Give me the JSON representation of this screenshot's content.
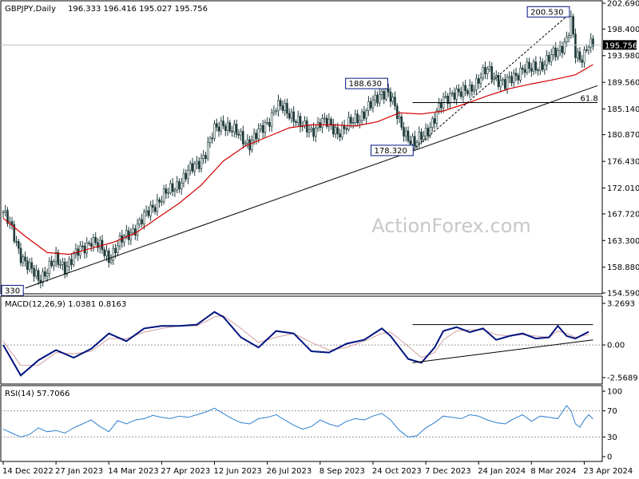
{
  "header": {
    "symbol": "GBPJPY,Daily",
    "ohlc": "196.333 196.416 195.027 195.756"
  },
  "watermark": "ActionForex.com",
  "colors": {
    "candle": "#1f3a3a",
    "ma": "#d40000",
    "macd": "#00137f",
    "signal": "#d0a0a0",
    "rsi": "#2e7fd0",
    "bg": "#ffffff",
    "current_price_bg": "#000000"
  },
  "chart_data": [
    {
      "type": "candlestick",
      "title": "GBPJPY,Daily",
      "ylim": [
        154.59,
        202.69
      ],
      "y_ticks": [
        "202.690",
        "198.400",
        "193.980",
        "189.560",
        "185.140",
        "180.870",
        "176.430",
        "172.010",
        "167.720",
        "163.300",
        "158.880",
        "154.590"
      ],
      "x_ticks": [
        "14 Dec 2022",
        "27 Jan 2023",
        "14 Mar 2023",
        "27 Apr 2023",
        "12 Jun 2023",
        "26 Jul 2023",
        "8 Sep 2023",
        "24 Oct 2023",
        "7 Dec 2023",
        "24 Jan 2024",
        "8 Mar 2024",
        "23 Apr 2024"
      ],
      "close_path": [
        [
          0,
          168.0
        ],
        [
          4,
          165.0
        ],
        [
          8,
          161.0
        ],
        [
          12,
          158.5
        ],
        [
          16,
          157.0
        ],
        [
          20,
          158.5
        ],
        [
          24,
          160.0
        ],
        [
          28,
          159.0
        ],
        [
          32,
          160.5
        ],
        [
          36,
          162.0
        ],
        [
          40,
          163.5
        ],
        [
          44,
          162.0
        ],
        [
          48,
          160.5
        ],
        [
          52,
          162.5
        ],
        [
          56,
          164.0
        ],
        [
          60,
          165.5
        ],
        [
          64,
          167.0
        ],
        [
          68,
          169.0
        ],
        [
          72,
          170.5
        ],
        [
          76,
          171.5
        ],
        [
          80,
          173.0
        ],
        [
          84,
          174.5
        ],
        [
          88,
          176.0
        ],
        [
          92,
          178.0
        ],
        [
          96,
          181.5
        ],
        [
          100,
          183.0
        ],
        [
          104,
          181.5
        ],
        [
          108,
          180.5
        ],
        [
          112,
          179.5
        ],
        [
          116,
          181.0
        ],
        [
          120,
          183.0
        ],
        [
          124,
          185.5
        ],
        [
          128,
          185.0
        ],
        [
          132,
          184.0
        ],
        [
          136,
          182.0
        ],
        [
          140,
          181.5
        ],
        [
          144,
          183.0
        ],
        [
          148,
          182.5
        ],
        [
          152,
          181.5
        ],
        [
          156,
          182.0
        ],
        [
          160,
          183.5
        ],
        [
          164,
          184.5
        ],
        [
          168,
          186.0
        ],
        [
          172,
          188.0
        ],
        [
          174,
          188.3
        ],
        [
          176,
          187.0
        ],
        [
          180,
          183.0
        ],
        [
          184,
          180.5
        ],
        [
          187,
          179.0
        ],
        [
          190,
          180.5
        ],
        [
          192,
          181.5
        ],
        [
          196,
          183.5
        ],
        [
          200,
          186.5
        ],
        [
          204,
          188.0
        ],
        [
          208,
          187.5
        ],
        [
          212,
          188.5
        ],
        [
          216,
          190.0
        ],
        [
          220,
          191.5
        ],
        [
          224,
          190.5
        ],
        [
          228,
          189.0
        ],
        [
          232,
          190.5
        ],
        [
          236,
          192.0
        ],
        [
          240,
          191.5
        ],
        [
          244,
          192.5
        ],
        [
          248,
          193.5
        ],
        [
          252,
          194.5
        ],
        [
          256,
          197.0
        ],
        [
          258,
          199.8
        ],
        [
          260,
          194.0
        ],
        [
          262,
          193.0
        ],
        [
          264,
          194.5
        ],
        [
          266,
          196.5
        ],
        [
          268,
          195.8
        ]
      ],
      "ma_path": [
        [
          0,
          167.0
        ],
        [
          10,
          164.0
        ],
        [
          20,
          161.3
        ],
        [
          30,
          161.0
        ],
        [
          40,
          162.0
        ],
        [
          50,
          163.0
        ],
        [
          60,
          164.5
        ],
        [
          70,
          167.0
        ],
        [
          80,
          169.5
        ],
        [
          90,
          172.5
        ],
        [
          100,
          176.5
        ],
        [
          110,
          179.0
        ],
        [
          120,
          180.5
        ],
        [
          130,
          182.0
        ],
        [
          140,
          182.5
        ],
        [
          150,
          182.5
        ],
        [
          160,
          182.3
        ],
        [
          170,
          183.0
        ],
        [
          180,
          184.5
        ],
        [
          190,
          184.3
        ],
        [
          200,
          184.8
        ],
        [
          210,
          186.0
        ],
        [
          220,
          187.3
        ],
        [
          230,
          188.5
        ],
        [
          240,
          189.3
        ],
        [
          250,
          190.0
        ],
        [
          260,
          190.8
        ],
        [
          268,
          192.5
        ]
      ],
      "annotations": [
        {
          "label": "200.530",
          "at": [
            258,
            200.53
          ]
        },
        {
          "label": "188.630",
          "at": [
            174,
            188.63
          ]
        },
        {
          "label": "178.320",
          "at": [
            187,
            178.32
          ]
        },
        {
          "label": "330",
          "at": [
            4,
            155.33
          ]
        },
        {
          "label": "61.8",
          "at": [
            268,
            186.2
          ]
        }
      ],
      "trendlines": [
        {
          "from": [
            10,
            155.4
          ],
          "to": [
            270,
            189.0
          ]
        },
        {
          "from": [
            186,
            178.3
          ],
          "to": [
            256,
            200.5
          ],
          "dashed": true
        },
        {
          "from": [
            186,
            186.2
          ],
          "to": [
            270,
            186.2
          ]
        },
        {
          "horizontal_price": 195.756
        }
      ],
      "current_price": "195.756"
    },
    {
      "type": "line",
      "title": "MACD(12,26,9) 1.0381 0.8163",
      "ylim": [
        -2.5689,
        3.2693
      ],
      "y_ticks": [
        "3.2693",
        "0.00",
        "-2.5689"
      ],
      "series": [
        {
          "name": "MACD",
          "values": [
            [
              0,
              0.0
            ],
            [
              8,
              -2.4
            ],
            [
              16,
              -1.2
            ],
            [
              24,
              -0.4
            ],
            [
              32,
              -1.0
            ],
            [
              40,
              -0.3
            ],
            [
              48,
              0.9
            ],
            [
              56,
              0.3
            ],
            [
              64,
              1.3
            ],
            [
              72,
              1.5
            ],
            [
              80,
              1.5
            ],
            [
              88,
              1.6
            ],
            [
              96,
              2.6
            ],
            [
              100,
              2.2
            ],
            [
              108,
              0.6
            ],
            [
              116,
              -0.2
            ],
            [
              124,
              1.1
            ],
            [
              132,
              0.9
            ],
            [
              140,
              -0.5
            ],
            [
              148,
              -0.6
            ],
            [
              156,
              0.1
            ],
            [
              164,
              0.4
            ],
            [
              172,
              1.3
            ],
            [
              176,
              0.7
            ],
            [
              184,
              -1.1
            ],
            [
              190,
              -1.4
            ],
            [
              196,
              -0.2
            ],
            [
              200,
              1.1
            ],
            [
              206,
              1.4
            ],
            [
              212,
              1.0
            ],
            [
              218,
              1.3
            ],
            [
              224,
              0.4
            ],
            [
              230,
              0.7
            ],
            [
              236,
              0.9
            ],
            [
              242,
              0.5
            ],
            [
              248,
              0.6
            ],
            [
              252,
              1.5
            ],
            [
              256,
              0.7
            ],
            [
              260,
              0.5
            ],
            [
              266,
              1.04
            ]
          ]
        },
        {
          "name": "Signal",
          "values": [
            [
              0,
              0.3
            ],
            [
              8,
              -1.6
            ],
            [
              16,
              -1.6
            ],
            [
              24,
              -0.6
            ],
            [
              32,
              -0.7
            ],
            [
              40,
              -0.5
            ],
            [
              48,
              0.5
            ],
            [
              56,
              0.5
            ],
            [
              64,
              1.0
            ],
            [
              72,
              1.3
            ],
            [
              80,
              1.5
            ],
            [
              88,
              1.5
            ],
            [
              96,
              2.2
            ],
            [
              100,
              2.3
            ],
            [
              108,
              1.3
            ],
            [
              116,
              0.2
            ],
            [
              124,
              0.6
            ],
            [
              132,
              0.9
            ],
            [
              140,
              0.2
            ],
            [
              148,
              -0.4
            ],
            [
              156,
              -0.2
            ],
            [
              164,
              0.3
            ],
            [
              172,
              0.9
            ],
            [
              176,
              1.0
            ],
            [
              184,
              -0.1
            ],
            [
              190,
              -1.0
            ],
            [
              196,
              -0.6
            ],
            [
              200,
              0.4
            ],
            [
              206,
              1.1
            ],
            [
              212,
              1.2
            ],
            [
              218,
              1.2
            ],
            [
              224,
              0.8
            ],
            [
              230,
              0.7
            ],
            [
              236,
              0.8
            ],
            [
              242,
              0.7
            ],
            [
              248,
              0.6
            ],
            [
              252,
              1.1
            ],
            [
              256,
              0.9
            ],
            [
              260,
              0.6
            ],
            [
              266,
              0.82
            ]
          ]
        }
      ],
      "trendlines": [
        {
          "from": [
            186,
            -1.4
          ],
          "to": [
            268,
            0.4
          ]
        },
        {
          "from": [
            186,
            1.6
          ],
          "to": [
            268,
            1.6
          ]
        }
      ]
    },
    {
      "type": "line",
      "title": "RSI(14) 57.7066",
      "ylim": [
        0,
        100
      ],
      "y_ticks": [
        "100",
        "70",
        "30",
        "0"
      ],
      "series": [
        {
          "name": "RSI",
          "values": [
            [
              0,
              42
            ],
            [
              4,
              36
            ],
            [
              8,
              30
            ],
            [
              12,
              34
            ],
            [
              16,
              44
            ],
            [
              20,
              38
            ],
            [
              24,
              40
            ],
            [
              28,
              36
            ],
            [
              32,
              44
            ],
            [
              36,
              50
            ],
            [
              40,
              56
            ],
            [
              44,
              46
            ],
            [
              48,
              38
            ],
            [
              52,
              55
            ],
            [
              56,
              50
            ],
            [
              60,
              56
            ],
            [
              64,
              58
            ],
            [
              68,
              63
            ],
            [
              72,
              60
            ],
            [
              76,
              58
            ],
            [
              80,
              62
            ],
            [
              84,
              60
            ],
            [
              88,
              64
            ],
            [
              92,
              68
            ],
            [
              96,
              74
            ],
            [
              100,
              66
            ],
            [
              104,
              58
            ],
            [
              108,
              52
            ],
            [
              112,
              50
            ],
            [
              116,
              58
            ],
            [
              120,
              60
            ],
            [
              124,
              64
            ],
            [
              128,
              56
            ],
            [
              132,
              48
            ],
            [
              136,
              42
            ],
            [
              140,
              46
            ],
            [
              144,
              56
            ],
            [
              148,
              50
            ],
            [
              152,
              46
            ],
            [
              156,
              54
            ],
            [
              160,
              58
            ],
            [
              164,
              56
            ],
            [
              168,
              62
            ],
            [
              172,
              66
            ],
            [
              176,
              56
            ],
            [
              180,
              40
            ],
            [
              184,
              30
            ],
            [
              188,
              32
            ],
            [
              192,
              44
            ],
            [
              196,
              52
            ],
            [
              200,
              62
            ],
            [
              204,
              60
            ],
            [
              208,
              58
            ],
            [
              212,
              64
            ],
            [
              216,
              62
            ],
            [
              220,
              56
            ],
            [
              224,
              52
            ],
            [
              228,
              50
            ],
            [
              232,
              58
            ],
            [
              236,
              64
            ],
            [
              240,
              54
            ],
            [
              244,
              62
            ],
            [
              248,
              60
            ],
            [
              252,
              58
            ],
            [
              256,
              78
            ],
            [
              258,
              70
            ],
            [
              260,
              50
            ],
            [
              262,
              45
            ],
            [
              264,
              56
            ],
            [
              266,
              64
            ],
            [
              268,
              57.7
            ]
          ]
        }
      ],
      "levels": [
        70,
        30
      ]
    }
  ]
}
